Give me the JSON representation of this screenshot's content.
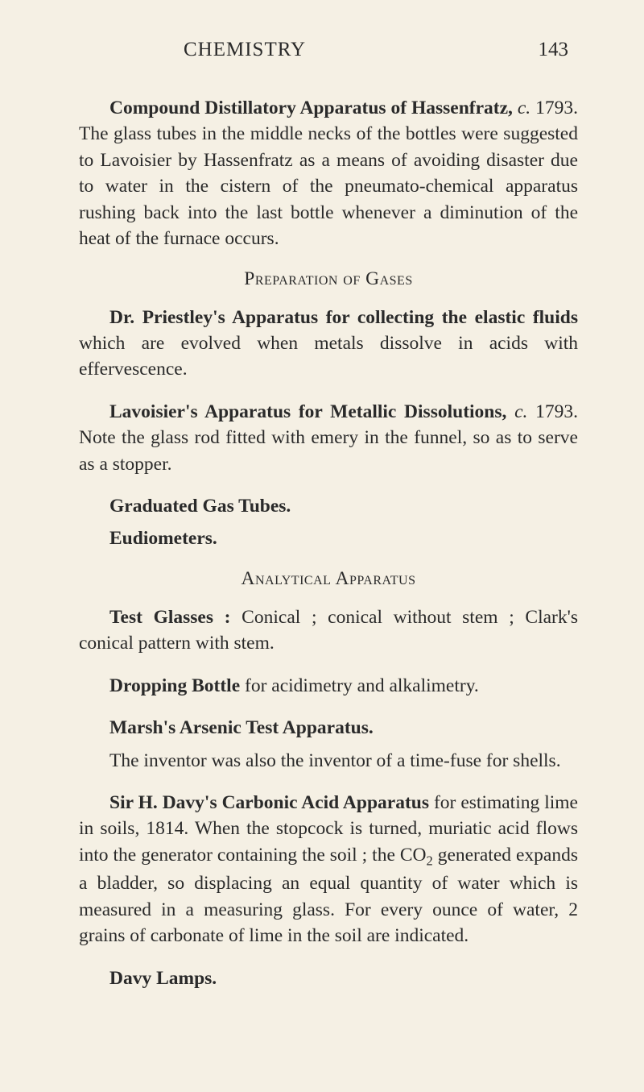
{
  "header": {
    "title": "CHEMISTRY",
    "page_number": "143"
  },
  "paragraphs": {
    "p1_bold": "Compound Distillatory Apparatus of Has­senfratz,",
    "p1_italic": "c.",
    "p1_text": " 1793. The glass tubes in the middle necks of the bottles were suggested to Lavoisier by Hassenfratz as a means of avoiding disaster due to water in the cistern of the pneumato-chemical apparatus rushing back into the last bottle when­ever a diminution of the heat of the furnace occurs.",
    "section1": "Preparation of Gases",
    "p2_bold": "Dr. Priestley's Apparatus for collecting the elastic fluids",
    "p2_text": " which are evolved when metals dissolve in acids with effervescence.",
    "p3_bold": "Lavoisier's Apparatus for Metallic Disso­lutions,",
    "p3_italic": "c.",
    "p3_text": " 1793. Note the glass rod fitted with emery in the funnel, so as to serve as a stopper.",
    "p4_bold": "Graduated Gas Tubes.",
    "p5_bold": "Eudiometers.",
    "section2": "Analytical Apparatus",
    "p6_bold": "Test Glasses :",
    "p6_text": " Conical ; conical without stem ; Clark's conical pattern with stem.",
    "p7_bold": "Dropping Bottle",
    "p7_text": " for acidimetry and alkali­metry.",
    "p8_bold": "Marsh's Arsenic Test Apparatus.",
    "p8b_text": "The inventor was also the inventor of a time-fuse for shells.",
    "p9_bold": "Sir H. Davy's Carbonic Acid Apparatus",
    "p9_text1": " for estimating lime in soils, 1814. When the stop­cock is turned, muriatic acid flows into the genera­tor containing the soil ; the CO",
    "p9_sub": "2",
    "p9_text2": " generated expands a bladder, so displacing an equal quantity of water which is measured in a measuring glass. For every ounce of water, 2 grains of carbonate of lime in the soil are indicated.",
    "p10_bold": "Davy Lamps."
  }
}
